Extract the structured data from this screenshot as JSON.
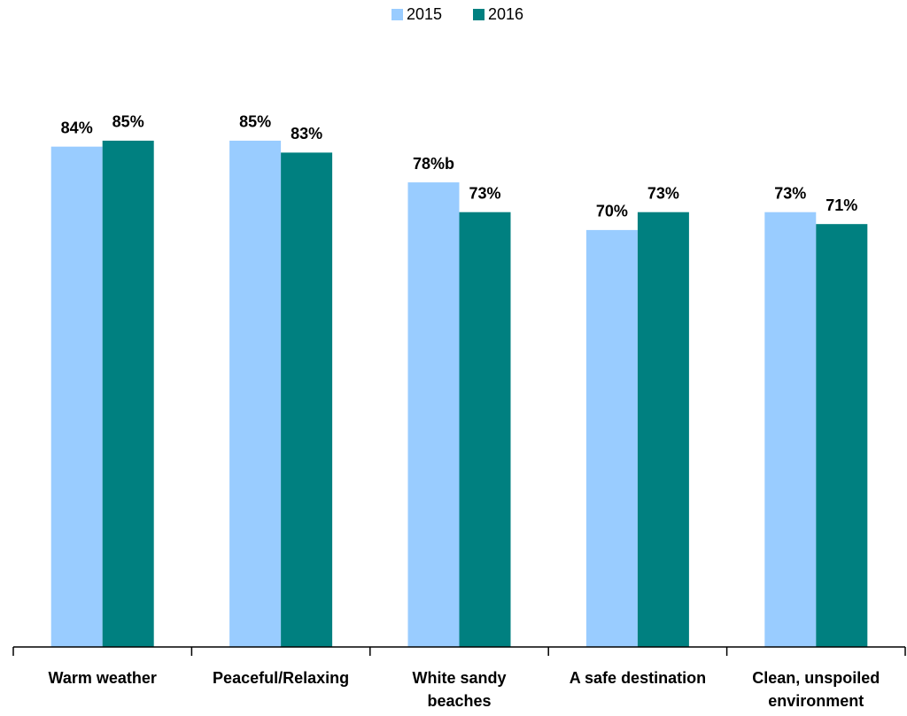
{
  "chart_data": {
    "type": "bar",
    "categories": [
      "Warm weather",
      "Peaceful/Relaxing",
      "White sandy beaches",
      "A safe destination",
      "Clean, unspoiled environment"
    ],
    "series": [
      {
        "name": "2015",
        "color": "#99ccff",
        "values": [
          84,
          85,
          78,
          70,
          73
        ],
        "value_labels": [
          "84%",
          "85%",
          "78%b",
          "70%",
          "73%"
        ]
      },
      {
        "name": "2016",
        "color": "#008080",
        "values": [
          85,
          83,
          73,
          73,
          71
        ],
        "value_labels": [
          "85%",
          "83%",
          "73%",
          "73%",
          "71%"
        ]
      }
    ],
    "ylim": [
      0,
      100
    ],
    "legend": "top"
  }
}
